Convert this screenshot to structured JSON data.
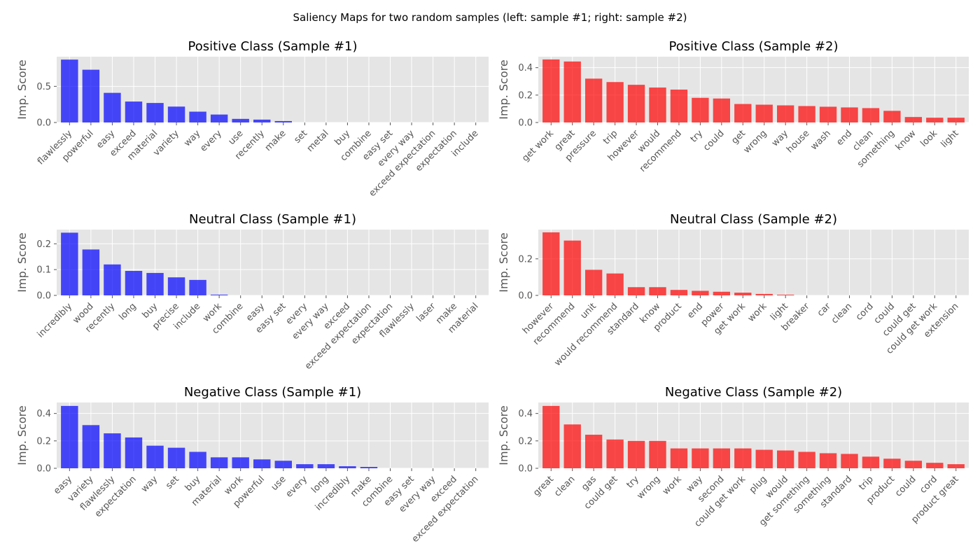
{
  "figure": {
    "suptitle": "Saliency Maps for two random samples (left: sample #1; right: sample #2)"
  },
  "chart_data": [
    {
      "type": "bar",
      "title": "Positive Class (Sample #1)",
      "ylabel": "Imp. Score",
      "color": "#0000ff",
      "ylim": [
        0,
        0.91
      ],
      "yticks": [
        0.0,
        0.5
      ],
      "categories": [
        "flawlessly",
        "powerful",
        "easy",
        "exceed",
        "material",
        "variety",
        "way",
        "every",
        "use",
        "recently",
        "make",
        "set",
        "metal",
        "buy",
        "combine",
        "easy set",
        "every way",
        "exceed expectation",
        "expectation",
        "include"
      ],
      "values": [
        0.87,
        0.73,
        0.41,
        0.29,
        0.27,
        0.22,
        0.15,
        0.11,
        0.05,
        0.04,
        0.02,
        0,
        0,
        0,
        0,
        0,
        0,
        0,
        0,
        0
      ]
    },
    {
      "type": "bar",
      "title": "Positive Class (Sample #2)",
      "ylabel": "Imp. Score",
      "color": "#ff0000",
      "ylim": [
        0,
        0.48
      ],
      "yticks": [
        0.0,
        0.2,
        0.4
      ],
      "categories": [
        "get work",
        "great",
        "pressure",
        "trip",
        "however",
        "would",
        "recommend",
        "try",
        "could",
        "get",
        "wrong",
        "way",
        "house",
        "wash",
        "end",
        "clean",
        "something",
        "know",
        "look",
        "light"
      ],
      "values": [
        0.46,
        0.445,
        0.32,
        0.295,
        0.275,
        0.255,
        0.24,
        0.18,
        0.175,
        0.135,
        0.13,
        0.125,
        0.12,
        0.115,
        0.11,
        0.105,
        0.085,
        0.04,
        0.035,
        0.035
      ]
    },
    {
      "type": "bar",
      "title": "Neutral Class (Sample #1)",
      "ylabel": "Imp. Score",
      "color": "#0000ff",
      "ylim": [
        0,
        0.255
      ],
      "yticks": [
        0.0,
        0.1,
        0.2
      ],
      "categories": [
        "incredibly",
        "wood",
        "recently",
        "long",
        "buy",
        "precise",
        "include",
        "work",
        "combine",
        "easy",
        "easy set",
        "every",
        "every way",
        "exceed",
        "exceed expectation",
        "expectation",
        "flawlessly",
        "laser",
        "make",
        "material"
      ],
      "values": [
        0.243,
        0.178,
        0.12,
        0.095,
        0.087,
        0.07,
        0.06,
        0.003,
        0,
        0,
        0,
        0,
        0,
        0,
        0,
        0,
        0,
        0,
        0,
        0
      ]
    },
    {
      "type": "bar",
      "title": "Neutral Class (Sample #2)",
      "ylabel": "Imp. Score",
      "color": "#ff0000",
      "ylim": [
        0,
        0.36
      ],
      "yticks": [
        0.0,
        0.2
      ],
      "categories": [
        "however",
        "recommend",
        "unit",
        "would recommend",
        "standard",
        "know",
        "product",
        "end",
        "power",
        "get work",
        "work",
        "light",
        "breaker",
        "car",
        "clean",
        "cord",
        "could",
        "could get",
        "could get work",
        "extension"
      ],
      "values": [
        0.345,
        0.3,
        0.14,
        0.12,
        0.045,
        0.045,
        0.03,
        0.025,
        0.02,
        0.015,
        0.008,
        0.004,
        0,
        0,
        0,
        0,
        0,
        0,
        0,
        0
      ]
    },
    {
      "type": "bar",
      "title": "Negative Class (Sample #1)",
      "ylabel": "Imp. Score",
      "color": "#0000ff",
      "ylim": [
        0,
        0.48
      ],
      "yticks": [
        0.0,
        0.2,
        0.4
      ],
      "categories": [
        "easy",
        "variety",
        "flawlessly",
        "expectation",
        "way",
        "set",
        "buy",
        "material",
        "work",
        "powerful",
        "use",
        "every",
        "long",
        "incredibly",
        "make",
        "combine",
        "easy set",
        "every way",
        "exceed",
        "exceed expectation"
      ],
      "values": [
        0.455,
        0.315,
        0.255,
        0.225,
        0.165,
        0.15,
        0.12,
        0.08,
        0.08,
        0.065,
        0.055,
        0.03,
        0.03,
        0.015,
        0.01,
        0,
        0,
        0,
        0,
        0
      ]
    },
    {
      "type": "bar",
      "title": "Negative Class (Sample #2)",
      "ylabel": "Imp. Score",
      "color": "#ff0000",
      "ylim": [
        0,
        0.48
      ],
      "yticks": [
        0.0,
        0.2,
        0.4
      ],
      "categories": [
        "great",
        "clean",
        "gas",
        "could get",
        "try",
        "wrong",
        "work",
        "way",
        "second",
        "could get work",
        "plug",
        "would",
        "get something",
        "something",
        "standard",
        "trip",
        "product",
        "could",
        "cord",
        "product great"
      ],
      "values": [
        0.455,
        0.32,
        0.245,
        0.21,
        0.2,
        0.2,
        0.145,
        0.145,
        0.145,
        0.145,
        0.135,
        0.13,
        0.12,
        0.11,
        0.105,
        0.085,
        0.07,
        0.055,
        0.04,
        0.03
      ]
    }
  ]
}
